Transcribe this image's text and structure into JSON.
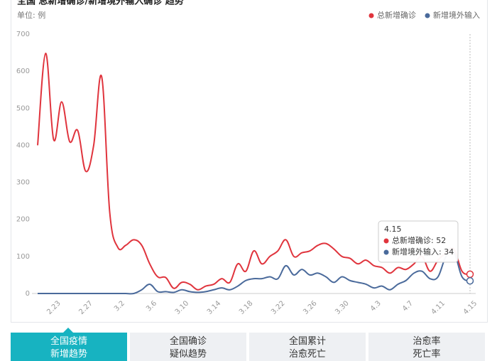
{
  "chart_data": {
    "type": "line",
    "title": "全国 总新增确诊/新增境外输入确诊 趋势",
    "unit_label": "单位: 例",
    "categories": [
      null,
      null,
      "2.23",
      null,
      null,
      null,
      "2.27",
      null,
      null,
      null,
      "3.2",
      null,
      null,
      null,
      "3.6",
      null,
      null,
      null,
      "3.10",
      null,
      null,
      null,
      "3.14",
      null,
      null,
      null,
      "3.18",
      null,
      null,
      null,
      "3.22",
      null,
      null,
      null,
      "3.26",
      null,
      null,
      null,
      "3.30",
      null,
      null,
      null,
      "4.3",
      null,
      null,
      null,
      "4.7",
      null,
      null,
      null,
      "4.11",
      null,
      null,
      null,
      "4.15"
    ],
    "series": [
      {
        "name": "总新增确诊",
        "color": "#e0343d",
        "values": [
          400,
          648,
          415,
          517,
          410,
          440,
          330,
          400,
          585,
          220,
          125,
          130,
          145,
          130,
          80,
          45,
          43,
          14,
          30,
          25,
          10,
          20,
          25,
          40,
          30,
          80,
          60,
          115,
          80,
          100,
          115,
          145,
          100,
          110,
          115,
          130,
          135,
          120,
          100,
          95,
          80,
          90,
          75,
          70,
          55,
          70,
          65,
          80,
          100,
          60,
          90,
          110,
          120,
          60,
          52
        ]
      },
      {
        "name": "新增境外输入",
        "color": "#4a6a9b",
        "values": [
          0,
          0,
          0,
          0,
          0,
          0,
          0,
          0,
          0,
          0,
          0,
          0,
          0,
          10,
          25,
          5,
          5,
          3,
          10,
          5,
          3,
          5,
          10,
          15,
          10,
          20,
          35,
          40,
          40,
          45,
          40,
          75,
          50,
          65,
          50,
          55,
          45,
          30,
          45,
          35,
          30,
          25,
          15,
          20,
          10,
          25,
          35,
          55,
          60,
          40,
          45,
          100,
          110,
          45,
          34
        ]
      }
    ],
    "ylim": [
      0,
      700
    ],
    "yticks": [
      0,
      100,
      200,
      300,
      400,
      500,
      600,
      700
    ],
    "grid": false,
    "legend": "top-right",
    "tooltip": {
      "title": "4.15",
      "items": [
        "总新增确诊: 52",
        "新增境外输入: 34"
      ]
    }
  },
  "tabs": [
    [
      "全国疫情",
      "新增趋势"
    ],
    [
      "全国确诊",
      "疑似趋势"
    ],
    [
      "全国累计",
      "治愈死亡"
    ],
    [
      "治愈率",
      "死亡率"
    ]
  ]
}
